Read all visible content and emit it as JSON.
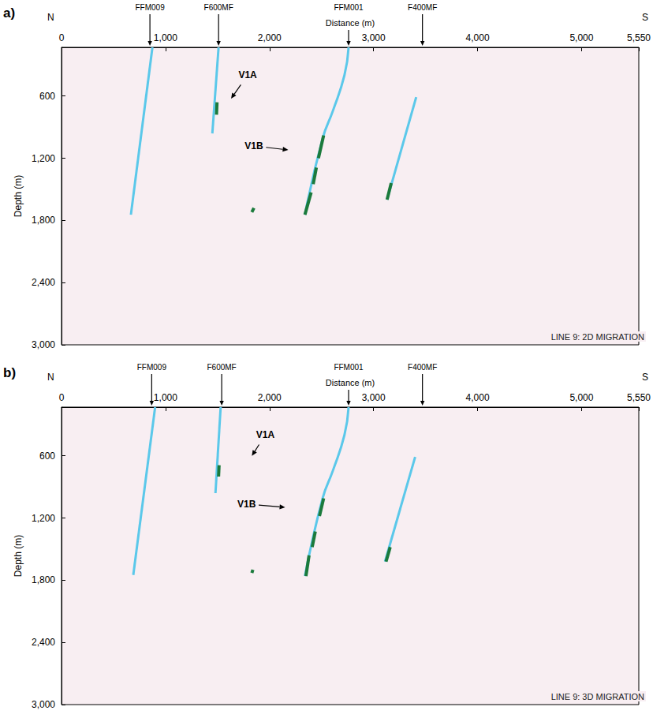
{
  "chart_data": [
    {
      "type": "line",
      "panel_label": "a)",
      "title": "LINE 9: 2D MIGRATION",
      "x_label": "Distance (m)",
      "y_label": "Depth (m)",
      "xlim": [
        0,
        5550
      ],
      "xticks": [
        0,
        1000,
        2000,
        3000,
        4000,
        5000
      ],
      "ylim": [
        130,
        3000
      ],
      "yticks": [
        600,
        1200,
        1800,
        2400,
        3000
      ],
      "grid": false,
      "end_labels": [
        "N",
        "S"
      ],
      "segment_color": "#1b7a3c",
      "series": [
        {
          "name": "FFM009",
          "color": "#5bc8ea",
          "marker_x": 850,
          "x": [
            874,
            667
          ],
          "values": [
            130,
            1745
          ],
          "segments": []
        },
        {
          "name": "F600MF",
          "color": "#5bc8ea",
          "marker_x": 1510,
          "x": [
            1510,
            1450
          ],
          "values": [
            130,
            960
          ],
          "segments": [
            [
              [
                1495,
                660
              ],
              [
                1490,
                780
              ]
            ]
          ]
        },
        {
          "name": "FFM001",
          "color": "#5bc8ea",
          "marker_x": 2760,
          "x": [
            2760,
            2720,
            2610,
            2510,
            2340
          ],
          "values": [
            130,
            400,
            740,
            1010,
            1745
          ],
          "segments": [
            [
              [
                2520,
                980
              ],
              [
                2470,
                1200
              ]
            ],
            [
              [
                2450,
                1290
              ],
              [
                2420,
                1450
              ]
            ],
            [
              [
                2400,
                1530
              ],
              [
                2340,
                1745
              ]
            ]
          ]
        },
        {
          "name": "F400MF",
          "color": "#5bc8ea",
          "marker_x": 3470,
          "x": [
            3410,
            3130
          ],
          "values": [
            610,
            1600
          ],
          "segments": [
            [
              [
                3170,
                1440
              ],
              [
                3130,
                1600
              ]
            ]
          ]
        }
      ],
      "segments": [
        [
          [
            1850,
            1680
          ],
          [
            1830,
            1720
          ]
        ]
      ],
      "annotations": [
        {
          "text": "V1A",
          "x": 1790,
          "y": 396,
          "arrow_x": 1630,
          "arrow_y": 625
        },
        {
          "text": "V1B",
          "x": 1850,
          "y": 1081,
          "arrow_x": 2180,
          "arrow_y": 1120
        }
      ]
    },
    {
      "type": "line",
      "panel_label": "b)",
      "title": "LINE 9: 3D MIGRATION",
      "x_label": "Distance (m)",
      "y_label": "Depth (m)",
      "xlim": [
        0,
        5550
      ],
      "xticks": [
        0,
        1000,
        2000,
        3000,
        4000,
        5000
      ],
      "ylim": [
        130,
        3000
      ],
      "yticks": [
        600,
        1200,
        1800,
        2400,
        3000
      ],
      "grid": false,
      "end_labels": [
        "N",
        "S"
      ],
      "segment_color": "#1b7a3c",
      "series": [
        {
          "name": "FFM009",
          "color": "#5bc8ea",
          "marker_x": 867,
          "x": [
            900,
            690
          ],
          "values": [
            130,
            1750
          ],
          "segments": []
        },
        {
          "name": "F600MF",
          "color": "#5bc8ea",
          "marker_x": 1540,
          "x": [
            1530,
            1480
          ],
          "values": [
            130,
            960
          ],
          "segments": [
            [
              [
                1515,
                690
              ],
              [
                1510,
                800
              ]
            ]
          ]
        },
        {
          "name": "FFM001",
          "color": "#5bc8ea",
          "marker_x": 2760,
          "x": [
            2760,
            2720,
            2610,
            2510,
            2340
          ],
          "values": [
            130,
            400,
            740,
            1010,
            1760
          ],
          "segments": [
            [
              [
                2520,
                1010
              ],
              [
                2480,
                1180
              ]
            ],
            [
              [
                2440,
                1330
              ],
              [
                2410,
                1480
              ]
            ],
            [
              [
                2380,
                1560
              ],
              [
                2350,
                1760
              ]
            ]
          ]
        },
        {
          "name": "F400MF",
          "color": "#5bc8ea",
          "marker_x": 3470,
          "x": [
            3400,
            3110
          ],
          "values": [
            610,
            1620
          ],
          "segments": [
            [
              [
                3160,
                1480
              ],
              [
                3120,
                1620
              ]
            ]
          ]
        }
      ],
      "segments": [
        [
          [
            1840,
            1700
          ],
          [
            1830,
            1730
          ]
        ]
      ],
      "annotations": [
        {
          "text": "V1A",
          "x": 1960,
          "y": 396,
          "arrow_x": 1830,
          "arrow_y": 600
        },
        {
          "text": "V1B",
          "x": 1780,
          "y": 1066,
          "arrow_x": 2150,
          "arrow_y": 1097
        }
      ]
    }
  ]
}
